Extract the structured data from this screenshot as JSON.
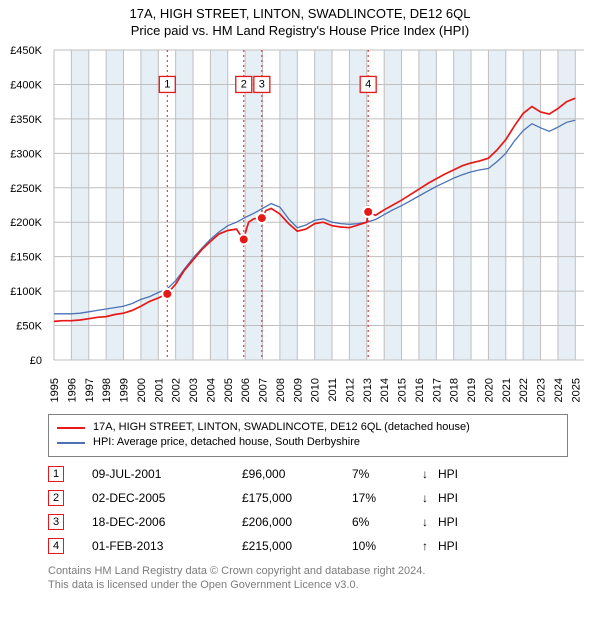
{
  "title": "17A, HIGH STREET, LINTON, SWADLINCOTE, DE12 6QL",
  "subtitle": "Price paid vs. HM Land Registry's House Price Index (HPI)",
  "chart": {
    "type": "line",
    "plot_bg": "#ffffff",
    "band_color": "#e7eff6",
    "grid_color": "#bfbfbf",
    "x_years": [
      1995,
      1996,
      1997,
      1998,
      1999,
      2000,
      2001,
      2002,
      2003,
      2004,
      2005,
      2006,
      2007,
      2008,
      2009,
      2010,
      2011,
      2012,
      2013,
      2014,
      2015,
      2016,
      2017,
      2018,
      2019,
      2020,
      2021,
      2022,
      2023,
      2024,
      2025
    ],
    "xlim": [
      1995,
      2025.5
    ],
    "ylim": [
      0,
      450000
    ],
    "ytick_step": 50000,
    "currency": "£",
    "series": [
      {
        "name": "17A, HIGH STREET, LINTON, SWADLINCOTE, DE12 6QL (detached house)",
        "color": "#e71818",
        "data": [
          [
            1995.0,
            56000
          ],
          [
            1995.5,
            57000
          ],
          [
            1996.0,
            57000
          ],
          [
            1996.5,
            58000
          ],
          [
            1997.0,
            60000
          ],
          [
            1997.5,
            62000
          ],
          [
            1998.0,
            63000
          ],
          [
            1998.5,
            66000
          ],
          [
            1999.0,
            68000
          ],
          [
            1999.5,
            72000
          ],
          [
            2000.0,
            78000
          ],
          [
            2000.5,
            85000
          ],
          [
            2001.0,
            90000
          ],
          [
            2001.5,
            96000
          ],
          [
            2002.0,
            110000
          ],
          [
            2002.5,
            130000
          ],
          [
            2003.0,
            145000
          ],
          [
            2003.5,
            160000
          ],
          [
            2004.0,
            172000
          ],
          [
            2004.5,
            183000
          ],
          [
            2005.0,
            188000
          ],
          [
            2005.5,
            190000
          ],
          [
            2005.9,
            175000
          ],
          [
            2006.2,
            200000
          ],
          [
            2006.5,
            205000
          ],
          [
            2006.96,
            206000
          ],
          [
            2007.2,
            217000
          ],
          [
            2007.5,
            220000
          ],
          [
            2008.0,
            212000
          ],
          [
            2008.5,
            198000
          ],
          [
            2009.0,
            187000
          ],
          [
            2009.5,
            190000
          ],
          [
            2010.0,
            198000
          ],
          [
            2010.5,
            200000
          ],
          [
            2011.0,
            195000
          ],
          [
            2011.5,
            193000
          ],
          [
            2012.0,
            192000
          ],
          [
            2012.5,
            196000
          ],
          [
            2013.0,
            200000
          ],
          [
            2013.08,
            215000
          ],
          [
            2013.5,
            210000
          ],
          [
            2014.0,
            218000
          ],
          [
            2014.5,
            225000
          ],
          [
            2015.0,
            232000
          ],
          [
            2015.5,
            240000
          ],
          [
            2016.0,
            248000
          ],
          [
            2016.5,
            256000
          ],
          [
            2017.0,
            263000
          ],
          [
            2017.5,
            270000
          ],
          [
            2018.0,
            276000
          ],
          [
            2018.5,
            282000
          ],
          [
            2019.0,
            286000
          ],
          [
            2019.5,
            289000
          ],
          [
            2020.0,
            293000
          ],
          [
            2020.5,
            305000
          ],
          [
            2021.0,
            320000
          ],
          [
            2021.5,
            340000
          ],
          [
            2022.0,
            358000
          ],
          [
            2022.5,
            368000
          ],
          [
            2023.0,
            360000
          ],
          [
            2023.5,
            357000
          ],
          [
            2024.0,
            365000
          ],
          [
            2024.5,
            375000
          ],
          [
            2025.0,
            380000
          ]
        ]
      },
      {
        "name": "HPI: Average price, detached house, South Derbyshire",
        "color": "#4a72b4",
        "data": [
          [
            1995.0,
            67000
          ],
          [
            1995.5,
            67000
          ],
          [
            1996.0,
            67000
          ],
          [
            1996.5,
            68000
          ],
          [
            1997.0,
            70000
          ],
          [
            1997.5,
            72000
          ],
          [
            1998.0,
            74000
          ],
          [
            1998.5,
            76000
          ],
          [
            1999.0,
            78000
          ],
          [
            1999.5,
            82000
          ],
          [
            2000.0,
            88000
          ],
          [
            2000.5,
            92000
          ],
          [
            2001.0,
            98000
          ],
          [
            2001.5,
            103000
          ],
          [
            2002.0,
            115000
          ],
          [
            2002.5,
            132000
          ],
          [
            2003.0,
            148000
          ],
          [
            2003.5,
            162000
          ],
          [
            2004.0,
            175000
          ],
          [
            2004.5,
            186000
          ],
          [
            2005.0,
            195000
          ],
          [
            2005.5,
            200000
          ],
          [
            2006.0,
            207000
          ],
          [
            2006.5,
            213000
          ],
          [
            2007.0,
            220000
          ],
          [
            2007.5,
            227000
          ],
          [
            2008.0,
            222000
          ],
          [
            2008.5,
            205000
          ],
          [
            2009.0,
            192000
          ],
          [
            2009.5,
            196000
          ],
          [
            2010.0,
            203000
          ],
          [
            2010.5,
            205000
          ],
          [
            2011.0,
            200000
          ],
          [
            2011.5,
            198000
          ],
          [
            2012.0,
            197000
          ],
          [
            2012.5,
            198000
          ],
          [
            2013.0,
            200000
          ],
          [
            2013.5,
            204000
          ],
          [
            2014.0,
            211000
          ],
          [
            2014.5,
            218000
          ],
          [
            2015.0,
            224000
          ],
          [
            2015.5,
            231000
          ],
          [
            2016.0,
            238000
          ],
          [
            2016.5,
            245000
          ],
          [
            2017.0,
            252000
          ],
          [
            2017.5,
            258000
          ],
          [
            2018.0,
            264000
          ],
          [
            2018.5,
            269000
          ],
          [
            2019.0,
            273000
          ],
          [
            2019.5,
            276000
          ],
          [
            2020.0,
            278000
          ],
          [
            2020.5,
            288000
          ],
          [
            2021.0,
            300000
          ],
          [
            2021.5,
            318000
          ],
          [
            2022.0,
            333000
          ],
          [
            2022.5,
            343000
          ],
          [
            2023.0,
            337000
          ],
          [
            2023.5,
            332000
          ],
          [
            2024.0,
            338000
          ],
          [
            2024.5,
            345000
          ],
          [
            2025.0,
            348000
          ]
        ]
      }
    ],
    "markers": [
      {
        "n": "1",
        "x": 2001.52,
        "y": 96000,
        "label_y": 400000
      },
      {
        "n": "2",
        "x": 2005.92,
        "y": 175000,
        "label_y": 400000
      },
      {
        "n": "3",
        "x": 2006.96,
        "y": 206000,
        "label_y": 400000
      },
      {
        "n": "4",
        "x": 2013.08,
        "y": 215000,
        "label_y": 400000
      }
    ]
  },
  "legend": [
    {
      "color": "red",
      "text": "17A, HIGH STREET, LINTON, SWADLINCOTE, DE12 6QL (detached house)"
    },
    {
      "color": "blue",
      "text": "HPI: Average price, detached house, South Derbyshire"
    }
  ],
  "sales": [
    {
      "n": "1",
      "date": "09-JUL-2001",
      "price": "£96,000",
      "diff": "7%",
      "arrow": "↓",
      "tag": "HPI"
    },
    {
      "n": "2",
      "date": "02-DEC-2005",
      "price": "£175,000",
      "diff": "17%",
      "arrow": "↓",
      "tag": "HPI"
    },
    {
      "n": "3",
      "date": "18-DEC-2006",
      "price": "£206,000",
      "diff": "6%",
      "arrow": "↓",
      "tag": "HPI"
    },
    {
      "n": "4",
      "date": "01-FEB-2013",
      "price": "£215,000",
      "diff": "10%",
      "arrow": "↑",
      "tag": "HPI"
    }
  ],
  "footer": {
    "line1": "Contains HM Land Registry data © Crown copyright and database right 2024.",
    "line2": "This data is licensed under the Open Government Licence v3.0."
  }
}
